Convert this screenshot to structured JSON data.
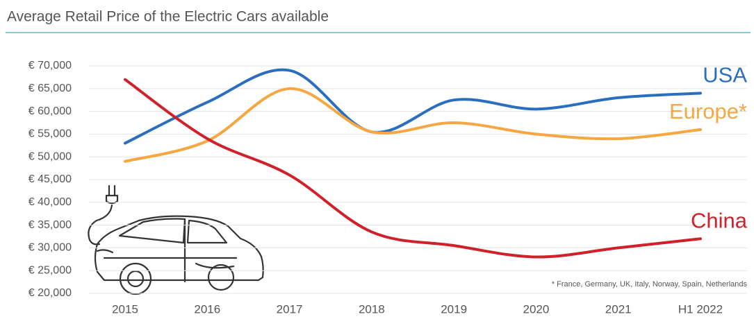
{
  "chart_data": {
    "type": "line",
    "title": "Average Retail Price of the Electric Cars available",
    "footnote": "* France, Germany, UK, Italy, Norway, Spain, Netherlands",
    "categories": [
      "2015",
      "2016",
      "2017",
      "2018",
      "2019",
      "2020",
      "2021",
      "H1 2022"
    ],
    "series": [
      {
        "name": "USA",
        "color": "#2a6fbf",
        "values": [
          53000,
          62000,
          69000,
          55500,
          62500,
          60500,
          63000,
          64000
        ]
      },
      {
        "name": "Europe*",
        "color": "#f5a742",
        "values": [
          49000,
          53500,
          65000,
          55500,
          57500,
          55000,
          54000,
          56000
        ]
      },
      {
        "name": "China",
        "color": "#d0202a",
        "values": [
          67000,
          54000,
          46000,
          33500,
          30500,
          28000,
          30000,
          32000
        ]
      }
    ],
    "ylim": [
      20000,
      70000
    ],
    "yticks": [
      {
        "value": 20000,
        "label": "€ 20,000"
      },
      {
        "value": 25000,
        "label": "€ 25,000"
      },
      {
        "value": 30000,
        "label": "€ 30,000"
      },
      {
        "value": 35000,
        "label": "€ 35,000"
      },
      {
        "value": 40000,
        "label": "€ 40,000"
      },
      {
        "value": 45000,
        "label": "€ 45,000"
      },
      {
        "value": 50000,
        "label": "€ 50,000"
      },
      {
        "value": 55000,
        "label": "€ 55,000"
      },
      {
        "value": 60000,
        "label": "€ 60,000"
      },
      {
        "value": 65000,
        "label": "€ 65,000"
      },
      {
        "value": 70000,
        "label": "€ 70,000"
      }
    ],
    "grid": true
  }
}
